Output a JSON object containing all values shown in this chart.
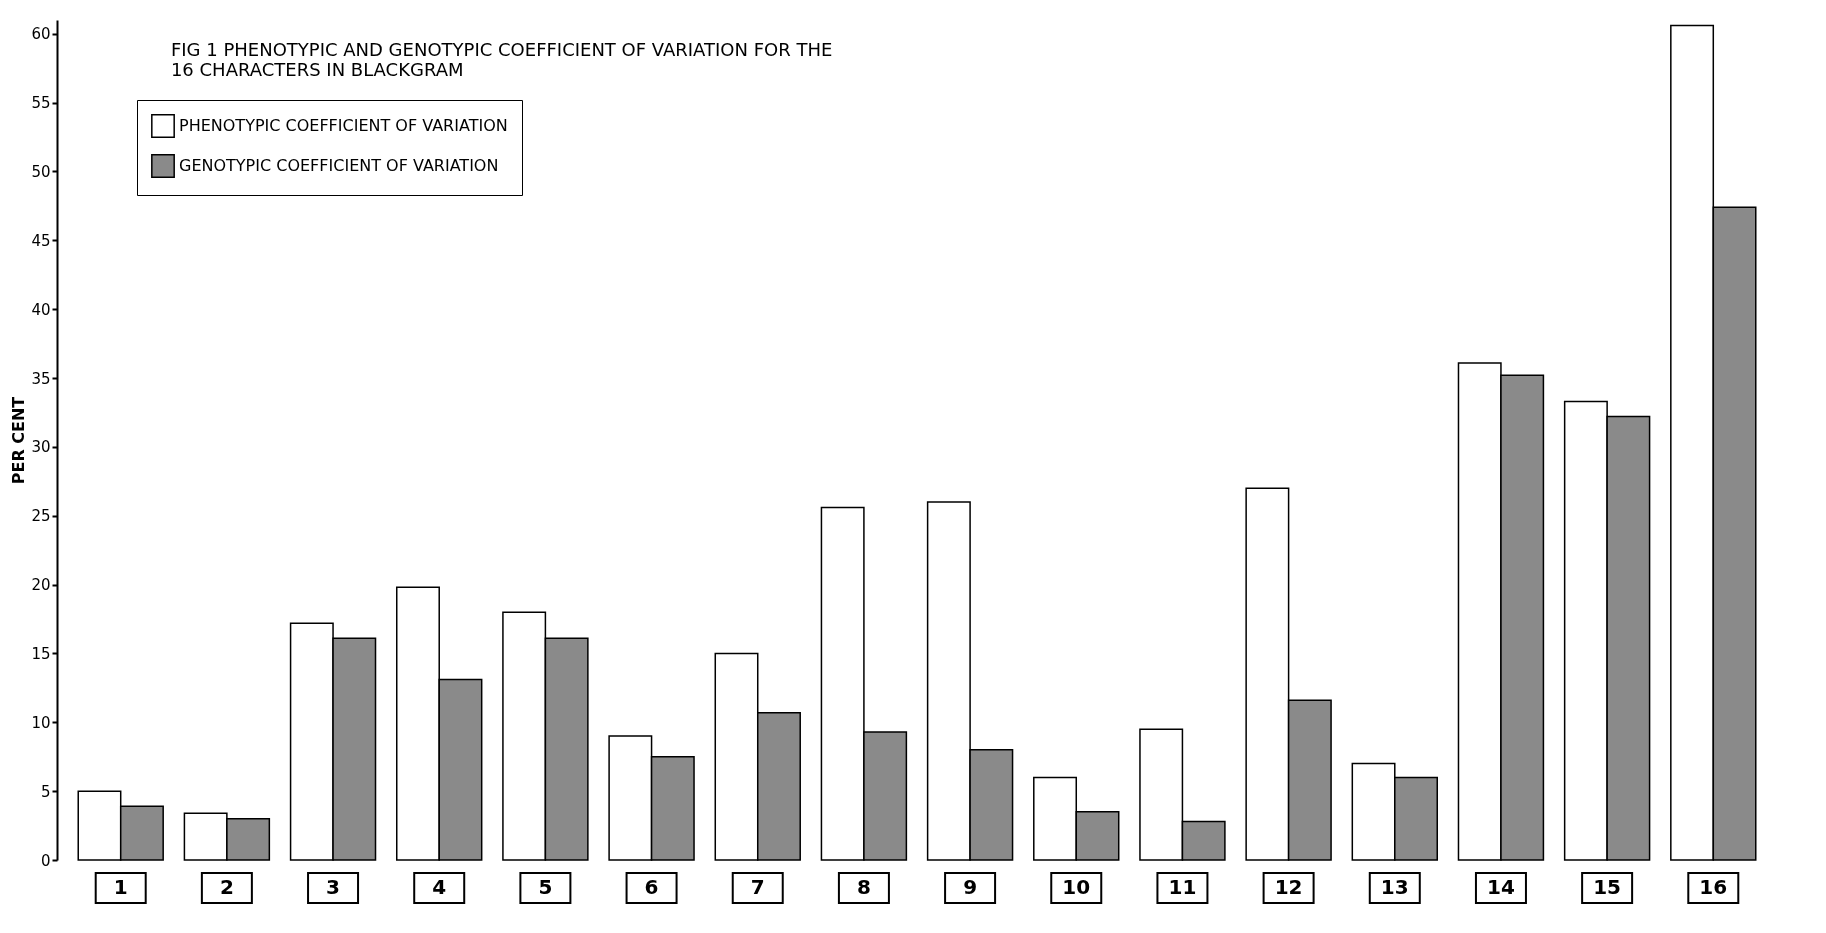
{
  "chart_data": {
    "type": "bar",
    "title": [
      "FIG 1 PHENOTYPIC AND GENOTYPIC COEFFICIENT OF VARIATION FOR THE",
      "16 CHARACTERS IN BLACKGRAM"
    ],
    "ylabel": "PER CENT",
    "categories": [
      "1",
      "2",
      "3",
      "4",
      "5",
      "6",
      "7",
      "8",
      "9",
      "10",
      "11",
      "12",
      "13",
      "14",
      "15",
      "16"
    ],
    "series": [
      {
        "name": "PHENOTYPIC COEFFICIENT OF VARIATION",
        "color": "#ffffff",
        "values": [
          5.0,
          3.4,
          17.2,
          19.8,
          18.0,
          9.0,
          15.0,
          25.6,
          26.0,
          6.0,
          9.5,
          27.0,
          7.0,
          36.1,
          33.3,
          60.6
        ]
      },
      {
        "name": "GENOTYPIC COEFFICIENT OF VARIATION",
        "color": "#8a8a8a",
        "values": [
          3.9,
          3.0,
          16.1,
          13.1,
          16.1,
          7.5,
          10.7,
          9.3,
          8.0,
          3.5,
          2.8,
          11.6,
          6.0,
          35.2,
          32.2,
          47.4
        ]
      }
    ],
    "ylim": [
      0,
      61
    ],
    "yticks": [
      0,
      5,
      10,
      15,
      20,
      25,
      30,
      35,
      40,
      45,
      50,
      55,
      60
    ],
    "grid": false,
    "legend": "top left"
  }
}
